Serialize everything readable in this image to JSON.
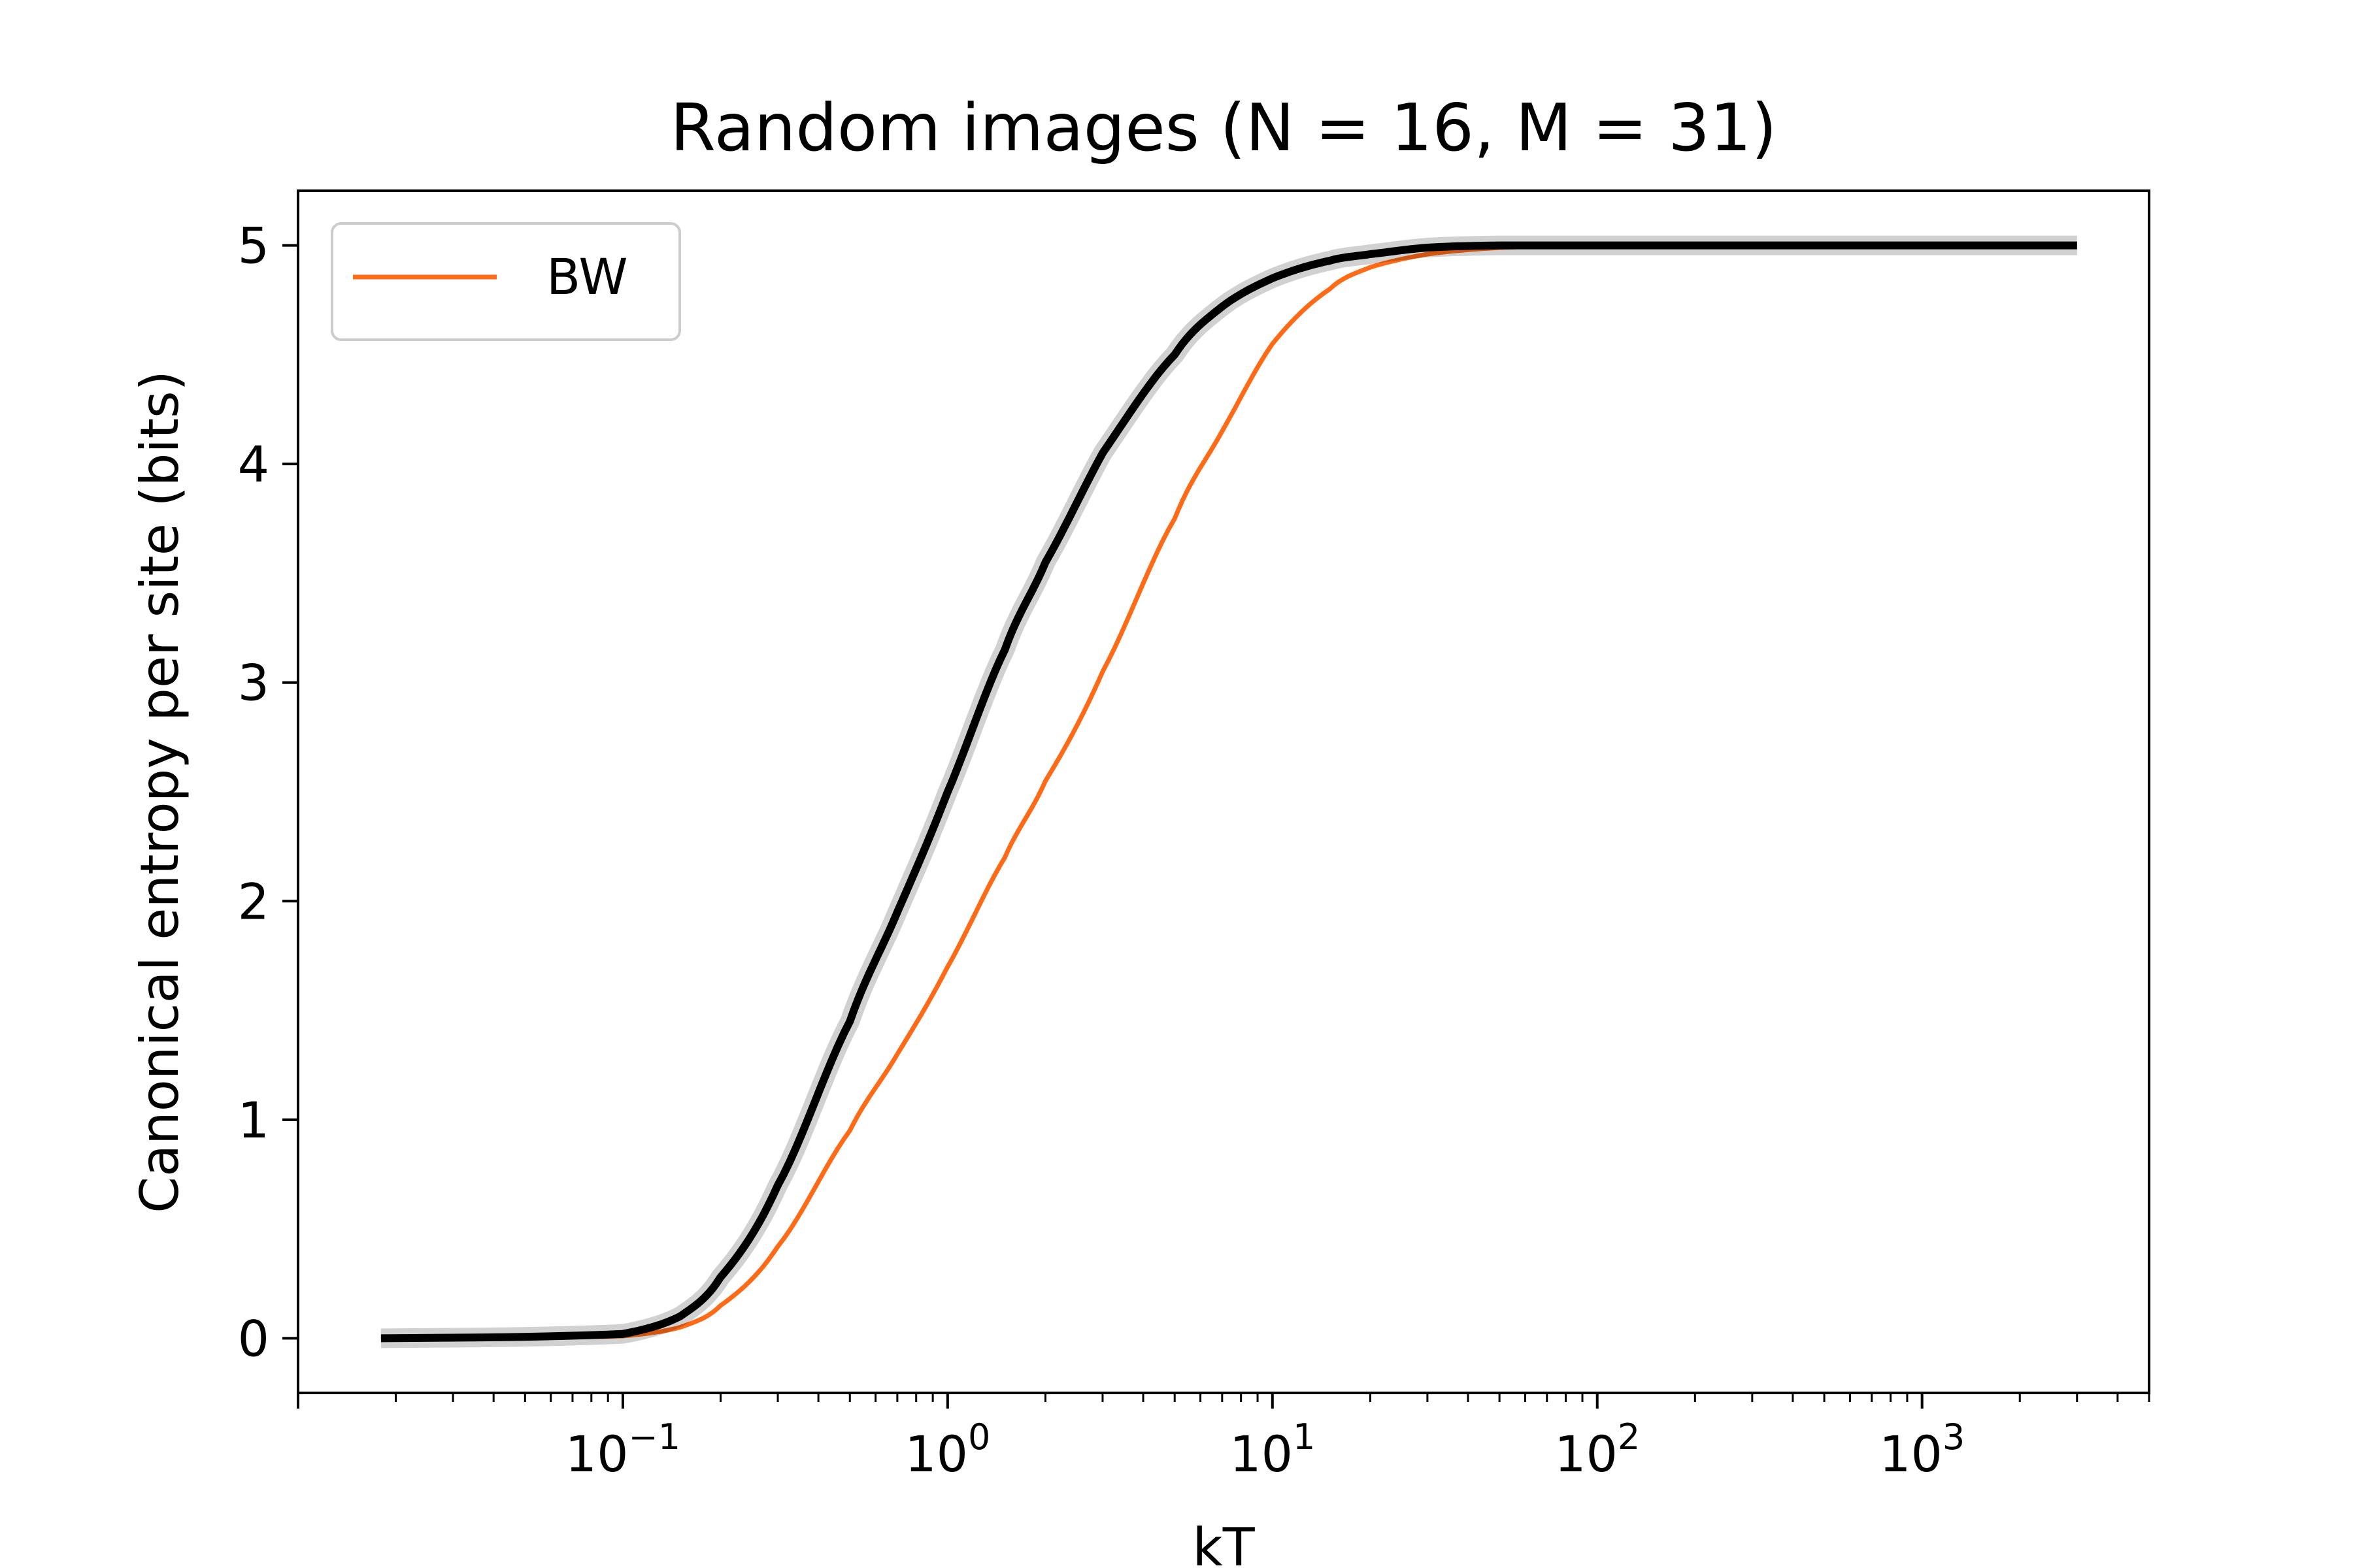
{
  "chart_data": {
    "type": "line",
    "title": "Random images (N = 16, M = 31)",
    "xlabel": "kT",
    "ylabel": "Canonical entropy per site (bits)",
    "xscale": "log",
    "xlim": [
      0.01,
      5000
    ],
    "ylim": [
      -0.25,
      5.25
    ],
    "xticks": [
      {
        "value": 0.1,
        "base": "10",
        "exp": "−1"
      },
      {
        "value": 1,
        "base": "10",
        "exp": "0"
      },
      {
        "value": 10,
        "base": "10",
        "exp": "1"
      },
      {
        "value": 100,
        "base": "10",
        "exp": "2"
      },
      {
        "value": 1000,
        "base": "10",
        "exp": "3"
      }
    ],
    "yticks": [
      "0",
      "1",
      "2",
      "3",
      "4",
      "5"
    ],
    "grid": false,
    "legend": {
      "position": "top-left",
      "entries": [
        "BW"
      ]
    },
    "series": [
      {
        "name": "BW",
        "color": "#ff6a17",
        "x": [
          0.018,
          0.1,
          0.15,
          0.2,
          0.3,
          0.5,
          0.7,
          1.0,
          1.5,
          2.0,
          3.0,
          5.0,
          7.0,
          10.0,
          15.0,
          20.0,
          30.0,
          50.0,
          100.0,
          300.0,
          1000.0,
          3000.0
        ],
        "y": [
          0.0,
          0.01,
          0.05,
          0.15,
          0.42,
          0.95,
          1.3,
          1.7,
          2.2,
          2.55,
          3.05,
          3.75,
          4.15,
          4.55,
          4.8,
          4.9,
          4.96,
          4.99,
          5.0,
          5.0,
          5.0,
          5.0
        ]
      },
      {
        "color": "#000000",
        "x": [
          0.018,
          0.1,
          0.15,
          0.2,
          0.3,
          0.5,
          0.7,
          1.0,
          1.5,
          2.0,
          3.0,
          5.0,
          7.0,
          10.0,
          15.0,
          20.0,
          30.0,
          50.0,
          100.0,
          300.0,
          1000.0,
          3000.0
        ],
        "y": [
          0.0,
          0.02,
          0.1,
          0.28,
          0.7,
          1.45,
          1.95,
          2.5,
          3.15,
          3.55,
          4.05,
          4.5,
          4.72,
          4.85,
          4.93,
          4.96,
          4.99,
          5.0,
          5.0,
          5.0,
          5.0,
          5.0
        ]
      }
    ]
  }
}
